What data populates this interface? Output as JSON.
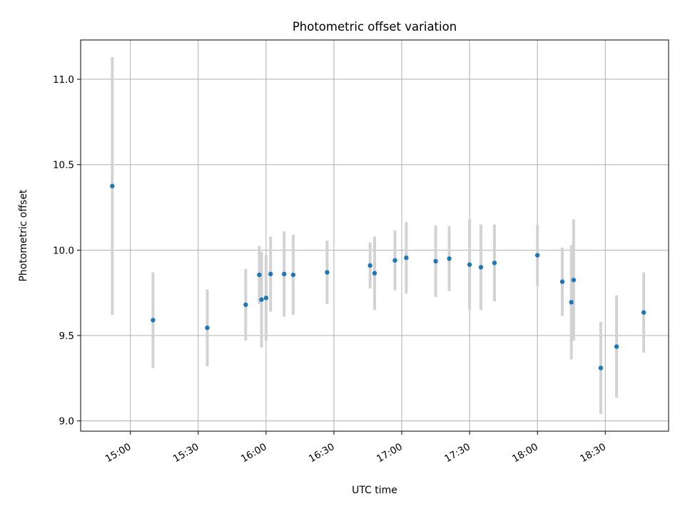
{
  "chart_data": {
    "type": "scatter",
    "title": "Photometric offset variation",
    "xlabel": "UTC time",
    "ylabel": "Photometric offset",
    "x_axis": "time",
    "xlim": [
      "14:38",
      "18:58"
    ],
    "ylim": [
      8.94,
      11.23
    ],
    "xticks": [
      "15:00",
      "15:30",
      "16:00",
      "16:30",
      "17:00",
      "17:30",
      "18:00",
      "18:30"
    ],
    "yticks": [
      9.0,
      9.5,
      10.0,
      10.5,
      11.0
    ],
    "ytick_labels": [
      "9.0",
      "9.5",
      "10.0",
      "10.5",
      "11.0"
    ],
    "grid": true,
    "legend": false,
    "colors": {
      "point": "#1f77b4",
      "errorbar": "#d3d3d3",
      "grid": "#b0b0b0"
    },
    "points": [
      {
        "x": "14:52",
        "y": 10.375,
        "yerr": 0.755
      },
      {
        "x": "15:10",
        "y": 9.59,
        "yerr": 0.28
      },
      {
        "x": "15:34",
        "y": 9.545,
        "yerr": 0.225
      },
      {
        "x": "15:51",
        "y": 9.68,
        "yerr": 0.21
      },
      {
        "x": "15:57",
        "y": 9.855,
        "yerr": 0.17
      },
      {
        "x": "15:58",
        "y": 9.71,
        "yerr": 0.28
      },
      {
        "x": "16:00",
        "y": 9.72,
        "yerr": 0.25
      },
      {
        "x": "16:02",
        "y": 9.86,
        "yerr": 0.22
      },
      {
        "x": "16:08",
        "y": 9.86,
        "yerr": 0.25
      },
      {
        "x": "16:12",
        "y": 9.855,
        "yerr": 0.235
      },
      {
        "x": "16:27",
        "y": 9.87,
        "yerr": 0.185
      },
      {
        "x": "16:46",
        "y": 9.91,
        "yerr": 0.135
      },
      {
        "x": "16:48",
        "y": 9.865,
        "yerr": 0.215
      },
      {
        "x": "16:57",
        "y": 9.94,
        "yerr": 0.175
      },
      {
        "x": "17:02",
        "y": 9.955,
        "yerr": 0.21
      },
      {
        "x": "17:15",
        "y": 9.935,
        "yerr": 0.21
      },
      {
        "x": "17:21",
        "y": 9.95,
        "yerr": 0.19
      },
      {
        "x": "17:30",
        "y": 9.915,
        "yerr": 0.265
      },
      {
        "x": "17:35",
        "y": 9.9,
        "yerr": 0.25
      },
      {
        "x": "17:41",
        "y": 9.925,
        "yerr": 0.225
      },
      {
        "x": "18:00",
        "y": 9.97,
        "yerr": 0.18
      },
      {
        "x": "18:11",
        "y": 9.815,
        "yerr": 0.2
      },
      {
        "x": "18:15",
        "y": 9.695,
        "yerr": 0.335
      },
      {
        "x": "18:16",
        "y": 9.825,
        "yerr": 0.355
      },
      {
        "x": "18:28",
        "y": 9.31,
        "yerr": 0.27
      },
      {
        "x": "18:35",
        "y": 9.435,
        "yerr": 0.3
      },
      {
        "x": "18:47",
        "y": 9.635,
        "yerr": 0.235
      }
    ]
  }
}
